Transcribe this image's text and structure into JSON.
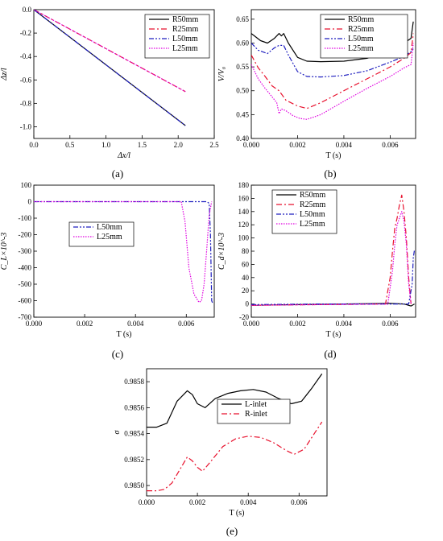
{
  "chart_data": [
    {
      "panel": "(a)",
      "type": "line",
      "xlabel": "Δx/l",
      "ylabel": "Δz/l",
      "xlim": [
        0.0,
        2.5
      ],
      "ylim": [
        -1.1,
        0.0
      ],
      "xticks": [
        "0.0",
        "0.5",
        "1.0",
        "1.5",
        "2.0",
        "2.5"
      ],
      "yticks": [
        "0.0",
        "-0.2",
        "-0.4",
        "-0.6",
        "-0.8",
        "-1.0"
      ],
      "legend_position": "top-right",
      "series": [
        {
          "name": "R50mm",
          "color": "#000000",
          "dash": "solid",
          "x": [
            0,
            2.1
          ],
          "y": [
            0,
            -0.99
          ]
        },
        {
          "name": "R25mm",
          "color": "#e8112d",
          "dash": "dashdot",
          "x": [
            0,
            2.1
          ],
          "y": [
            0,
            -0.7
          ]
        },
        {
          "name": "L50mm",
          "color": "#1f1fbf",
          "dash": "dashdotdot",
          "x": [
            0,
            2.1
          ],
          "y": [
            0,
            -0.99
          ]
        },
        {
          "name": "L25mm",
          "color": "#e000e0",
          "dash": "dotted",
          "x": [
            0,
            2.1
          ],
          "y": [
            0,
            -0.7
          ]
        }
      ]
    },
    {
      "panel": "(b)",
      "type": "line",
      "xlabel": "T (s)",
      "ylabel": "V/V₀",
      "xlim": [
        0.0,
        0.0071
      ],
      "ylim": [
        0.4,
        0.67
      ],
      "xticks": [
        "0.000",
        "0.002",
        "0.004",
        "0.006"
      ],
      "yticks": [
        "0.40",
        "0.45",
        "0.50",
        "0.55",
        "0.60",
        "0.65"
      ],
      "legend_position": "top-right",
      "series": [
        {
          "name": "R50mm",
          "color": "#000000",
          "dash": "solid",
          "x": [
            0,
            0.0004,
            0.0007,
            0.001,
            0.0012,
            0.0013,
            0.0014,
            0.0016,
            0.002,
            0.0024,
            0.003,
            0.004,
            0.005,
            0.006,
            0.0066,
            0.0069,
            0.007
          ],
          "y": [
            0.62,
            0.605,
            0.6,
            0.61,
            0.62,
            0.615,
            0.62,
            0.6,
            0.57,
            0.562,
            0.561,
            0.562,
            0.568,
            0.585,
            0.6,
            0.61,
            0.645
          ]
        },
        {
          "name": "R25mm",
          "color": "#e8112d",
          "dash": "dashdot",
          "x": [
            0,
            0.0003,
            0.0006,
            0.0009,
            0.0012,
            0.0015,
            0.002,
            0.0024,
            0.003,
            0.004,
            0.005,
            0.006,
            0.0066,
            0.0069,
            0.007
          ],
          "y": [
            0.575,
            0.548,
            0.53,
            0.51,
            0.5,
            0.48,
            0.468,
            0.463,
            0.475,
            0.5,
            0.525,
            0.55,
            0.568,
            0.58,
            0.62
          ]
        },
        {
          "name": "L50mm",
          "color": "#1f1fbf",
          "dash": "dashdotdot",
          "x": [
            0,
            0.0003,
            0.0007,
            0.001,
            0.0012,
            0.0014,
            0.0016,
            0.002,
            0.0024,
            0.003,
            0.004,
            0.005,
            0.006,
            0.0066,
            0.0069,
            0.007
          ],
          "y": [
            0.6,
            0.585,
            0.578,
            0.59,
            0.595,
            0.595,
            0.575,
            0.54,
            0.53,
            0.529,
            0.532,
            0.542,
            0.56,
            0.572,
            0.582,
            0.588
          ]
        },
        {
          "name": "L25mm",
          "color": "#e000e0",
          "dash": "dotted",
          "x": [
            0,
            0.0003,
            0.0006,
            0.0009,
            0.0011,
            0.0012,
            0.0013,
            0.0015,
            0.0018,
            0.0021,
            0.0024,
            0.003,
            0.004,
            0.005,
            0.006,
            0.0066,
            0.0069,
            0.007
          ],
          "y": [
            0.555,
            0.525,
            0.505,
            0.487,
            0.475,
            0.452,
            0.462,
            0.458,
            0.448,
            0.442,
            0.44,
            0.45,
            0.478,
            0.505,
            0.53,
            0.548,
            0.555,
            0.6
          ]
        }
      ]
    },
    {
      "panel": "(c)",
      "type": "line",
      "xlabel": "T (s)",
      "ylabel": "C_L×10^-3",
      "xlim": [
        0.0,
        0.0071
      ],
      "ylim": [
        -700,
        100
      ],
      "xticks": [
        "0.000",
        "0.002",
        "0.004",
        "0.006"
      ],
      "yticks": [
        "100",
        "0",
        "-100",
        "-200",
        "-300",
        "-400",
        "-500",
        "-600",
        "-700"
      ],
      "legend_position": "center-left",
      "series": [
        {
          "name": "L50mm",
          "color": "#1f1fbf",
          "dash": "dashdotdot",
          "x": [
            0,
            0.0067,
            0.0068,
            0.0069,
            0.00695,
            0.007,
            0.00705
          ],
          "y": [
            0,
            0,
            0,
            -10,
            -200,
            -600,
            -620
          ]
        },
        {
          "name": "L25mm",
          "color": "#e000e0",
          "dash": "dotted",
          "x": [
            0,
            0.0058,
            0.00595,
            0.0061,
            0.0063,
            0.0065,
            0.0066,
            0.0067,
            0.0068,
            0.0069,
            0.007
          ],
          "y": [
            0,
            0,
            -120,
            -400,
            -560,
            -610,
            -600,
            -500,
            -300,
            -80,
            0
          ]
        }
      ]
    },
    {
      "panel": "(d)",
      "type": "line",
      "xlabel": "T (s)",
      "ylabel": "C_d×10^-3",
      "xlim": [
        0.0,
        0.0071
      ],
      "ylim": [
        -20,
        180
      ],
      "xticks": [
        "0.000",
        "0.002",
        "0.004",
        "0.006"
      ],
      "yticks": [
        "-20",
        "0",
        "20",
        "40",
        "60",
        "80",
        "100",
        "120",
        "140",
        "160",
        "180"
      ],
      "legend_position": "top-left",
      "series": [
        {
          "name": "R50mm",
          "color": "#000000",
          "dash": "solid",
          "x": [
            0,
            0.001,
            0.002,
            0.003,
            0.004,
            0.005,
            0.006,
            0.0066,
            0.0069,
            0.00705
          ],
          "y": [
            -2,
            -1.5,
            -1,
            -0.5,
            0,
            0.5,
            1,
            0,
            -3,
            0
          ]
        },
        {
          "name": "R25mm",
          "color": "#e8112d",
          "dash": "dashdot",
          "x": [
            0,
            0.0058,
            0.006,
            0.0061,
            0.0062,
            0.0063,
            0.0064,
            0.0065,
            0.0066,
            0.0067,
            0.0068,
            0.0069
          ],
          "y": [
            -2,
            0,
            40,
            80,
            115,
            130,
            150,
            165,
            140,
            100,
            40,
            0
          ]
        },
        {
          "name": "L50mm",
          "color": "#1f1fbf",
          "dash": "dashdotdot",
          "x": [
            0,
            0.003,
            0.0068,
            0.00695,
            0.007,
            0.00705
          ],
          "y": [
            -1,
            0,
            0,
            30,
            70,
            82
          ]
        },
        {
          "name": "L25mm",
          "color": "#e000e0",
          "dash": "dotted",
          "x": [
            0,
            0.0059,
            0.0061,
            0.0062,
            0.0063,
            0.0064,
            0.0065,
            0.0066,
            0.0067,
            0.0068,
            0.0069
          ],
          "y": [
            -2,
            0,
            50,
            90,
            120,
            130,
            140,
            125,
            90,
            30,
            0
          ]
        }
      ]
    },
    {
      "panel": "(e)",
      "type": "line",
      "xlabel": "T (s)",
      "ylabel": "σ",
      "xlim": [
        0.0,
        0.0071
      ],
      "ylim": [
        0.98492,
        0.9859
      ],
      "xticks": [
        "0.000",
        "0.002",
        "0.004",
        "0.006"
      ],
      "yticks": [
        "0.9850",
        "0.9852",
        "0.9854",
        "0.9856",
        "0.9858"
      ],
      "legend_position": "top-center",
      "series": [
        {
          "name": "L-inlet",
          "color": "#000000",
          "dash": "solid",
          "x": [
            0,
            0.0004,
            0.0008,
            0.0012,
            0.0016,
            0.0018,
            0.002,
            0.0023,
            0.0027,
            0.0032,
            0.0037,
            0.0042,
            0.0047,
            0.0052,
            0.0057,
            0.0061,
            0.0065,
            0.0069
          ],
          "y": [
            0.98545,
            0.98545,
            0.98548,
            0.98565,
            0.98573,
            0.9857,
            0.98563,
            0.9856,
            0.98567,
            0.98571,
            0.98573,
            0.98574,
            0.98572,
            0.98567,
            0.98563,
            0.98565,
            0.98575,
            0.98586
          ]
        },
        {
          "name": "R-inlet",
          "color": "#e8112d",
          "dash": "dashdot",
          "x": [
            0,
            0.0004,
            0.0007,
            0.001,
            0.0013,
            0.0016,
            0.0018,
            0.002,
            0.0022,
            0.0025,
            0.003,
            0.0035,
            0.004,
            0.0045,
            0.005,
            0.0055,
            0.0058,
            0.0062,
            0.0066,
            0.0069
          ],
          "y": [
            0.98496,
            0.98496,
            0.98497,
            0.98502,
            0.98512,
            0.98522,
            0.98519,
            0.98514,
            0.98511,
            0.98518,
            0.9853,
            0.98536,
            0.98538,
            0.98537,
            0.98533,
            0.98527,
            0.98524,
            0.98528,
            0.9854,
            0.98549
          ]
        }
      ]
    }
  ],
  "captions": [
    "(a)",
    "(b)",
    "(c)",
    "(d)",
    "(e)"
  ]
}
